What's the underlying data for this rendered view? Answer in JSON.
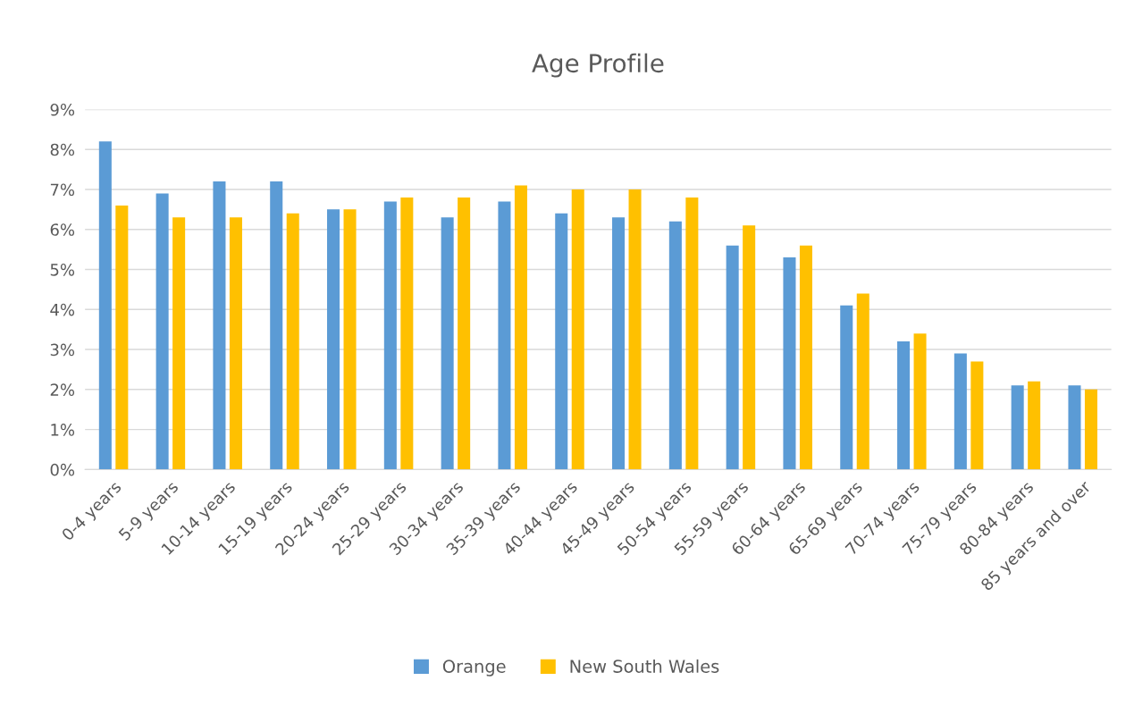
{
  "chart_data": {
    "type": "bar",
    "title": "Age Profile",
    "categories": [
      "0-4 years",
      "5-9 years",
      "10-14 years",
      "15-19 years",
      "20-24 years",
      "25-29 years",
      "30-34 years",
      "35-39 years",
      "40-44 years",
      "45-49 years",
      "50-54 years",
      "55-59 years",
      "60-64 years",
      "65-69 years",
      "70-74 years",
      "75-79 years",
      "80-84 years",
      "85 years and over"
    ],
    "series": [
      {
        "name": "Orange",
        "color": "#5b9bd5",
        "values": [
          8.2,
          6.9,
          7.2,
          7.2,
          6.5,
          6.7,
          6.3,
          6.7,
          6.4,
          6.3,
          6.2,
          5.6,
          5.3,
          4.1,
          3.2,
          2.9,
          2.1,
          2.1
        ]
      },
      {
        "name": "New South Wales",
        "color": "#ffc000",
        "values": [
          6.6,
          6.3,
          6.3,
          6.4,
          6.5,
          6.8,
          6.8,
          7.1,
          7.0,
          7.0,
          6.8,
          6.1,
          5.6,
          4.4,
          3.4,
          2.7,
          2.2,
          2.0
        ]
      }
    ],
    "ylim": [
      0,
      9
    ],
    "yticks": [
      {
        "value": 0,
        "label": "0%"
      },
      {
        "value": 1,
        "label": "1%"
      },
      {
        "value": 2,
        "label": "2%"
      },
      {
        "value": 3,
        "label": "3%"
      },
      {
        "value": 4,
        "label": "4%"
      },
      {
        "value": 5,
        "label": "5%"
      },
      {
        "value": 6,
        "label": "6%"
      },
      {
        "value": 7,
        "label": "7%"
      },
      {
        "value": 8,
        "label": "8%"
      },
      {
        "value": 9,
        "label": "9%"
      }
    ],
    "grid": "y",
    "legend": "bottom"
  }
}
